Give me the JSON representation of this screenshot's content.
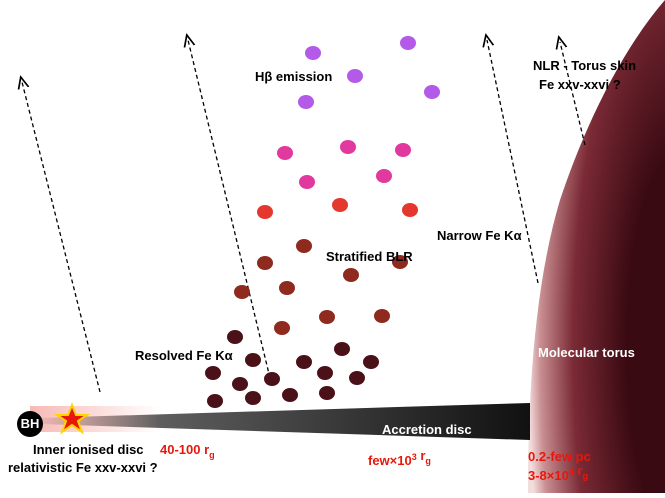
{
  "labels": {
    "hbeta": "Hβ emission",
    "nlr_1": "NLR - Torus skin",
    "nlr_2": "Fe xxv-xxvi ?",
    "narrow": "Narrow Fe Kα",
    "blr": "Stratified BLR",
    "resolved": "Resolved Fe Kα",
    "torus": "Molecular torus",
    "bh": "BH",
    "disc": "Accretion disc",
    "inner_1": "Inner ionised disc",
    "inner_2": "relativistic Fe xxv-xxvi ?",
    "r_inner": [
      {
        "t": "40-100 r"
      },
      {
        "sub": "g"
      }
    ],
    "r_disc": [
      {
        "t": "few×10"
      },
      {
        "sup": "3"
      },
      {
        "t": " r"
      },
      {
        "sub": "g"
      }
    ],
    "r_torus_1": "0.2-few pc",
    "r_torus_2": [
      {
        "t": "3-8×10"
      },
      {
        "sup": "4"
      },
      {
        "t": " r"
      },
      {
        "sub": "g"
      }
    ]
  }
}
